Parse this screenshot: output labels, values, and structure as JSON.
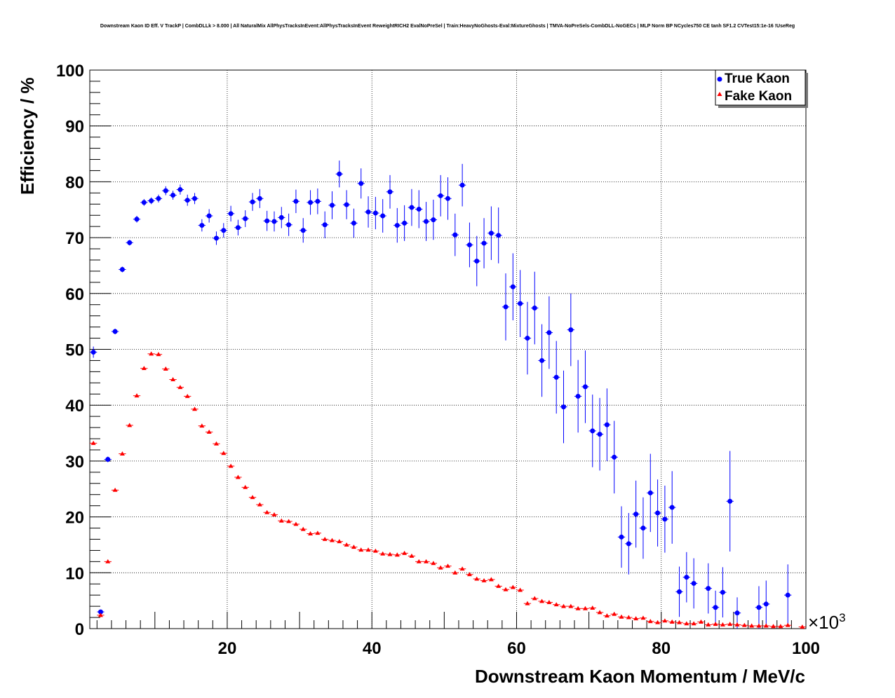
{
  "chart_data": {
    "type": "scatter",
    "title": "Downstream Kaon ID Eff. V TrackP | CombDLLk > 8.000 | All NaturalMix AllPhysTracksInEvent:AllPhysTracksInEvent ReweightRICH2 EvalNoPreSel | Train:HeavyNoGhosts-Eval:MixtureGhosts | TMVA-NoPreSels-CombDLL-NoGECs | MLP Norm BP NCycles750 CE tanh SF1.2 CVTest15:1e-16 !UseReg",
    "xlabel": "Downstream Kaon Momentum / MeV/c",
    "ylabel": "Efficiency / %",
    "x_multiplier": "×10",
    "x_multiplier_exp": "3",
    "xlim": [
      1,
      100
    ],
    "ylim": [
      0,
      100
    ],
    "x_ticks": [
      20,
      40,
      60,
      80,
      100
    ],
    "y_ticks": [
      0,
      10,
      20,
      30,
      40,
      50,
      60,
      70,
      80,
      90,
      100
    ],
    "grid": true,
    "legend_position": "top-right",
    "series": [
      {
        "name": "True Kaon",
        "color": "#0000ff",
        "marker": "circle",
        "x": [
          1.5,
          2.5,
          3.5,
          4.5,
          5.5,
          6.5,
          7.5,
          8.5,
          9.5,
          10.5,
          11.5,
          12.5,
          13.5,
          14.5,
          15.5,
          16.5,
          17.5,
          18.5,
          19.5,
          20.5,
          21.5,
          22.5,
          23.5,
          24.5,
          25.5,
          26.5,
          27.5,
          28.5,
          29.5,
          30.5,
          31.5,
          32.5,
          33.5,
          34.5,
          35.5,
          36.5,
          37.5,
          38.5,
          39.5,
          40.5,
          41.5,
          42.5,
          43.5,
          44.5,
          45.5,
          46.5,
          47.5,
          48.5,
          49.5,
          50.5,
          51.5,
          52.5,
          53.5,
          54.5,
          55.5,
          56.5,
          57.5,
          58.5,
          59.5,
          60.5,
          61.5,
          62.5,
          63.5,
          64.5,
          65.5,
          66.5,
          67.5,
          68.5,
          69.5,
          70.5,
          71.5,
          72.5,
          73.5,
          74.5,
          75.5,
          76.5,
          77.5,
          78.5,
          79.5,
          80.5,
          81.5,
          82.5,
          83.5,
          84.5,
          86.5,
          87.5,
          88.5,
          89.5,
          90.5,
          93.5,
          94.5,
          97.5
        ],
        "y": [
          49.5,
          3.0,
          30.3,
          53.2,
          64.3,
          69.1,
          73.3,
          76.3,
          76.6,
          77.0,
          78.4,
          77.6,
          78.6,
          76.7,
          77.0,
          72.2,
          73.9,
          69.9,
          71.3,
          74.3,
          71.8,
          73.4,
          76.4,
          77.0,
          73.0,
          72.9,
          73.6,
          72.3,
          76.5,
          71.3,
          76.3,
          76.5,
          72.3,
          75.8,
          81.4,
          75.9,
          72.6,
          79.7,
          74.6,
          74.4,
          73.9,
          78.2,
          72.2,
          72.6,
          75.4,
          75.1,
          72.9,
          73.2,
          77.5,
          77.0,
          70.5,
          79.4,
          68.7,
          65.8,
          69.0,
          70.8,
          70.4,
          57.6,
          61.2,
          58.2,
          52.0,
          57.4,
          48.0,
          53.0,
          45.0,
          39.7,
          53.5,
          41.6,
          43.3,
          35.4,
          34.8,
          36.5,
          30.7,
          16.4,
          15.2,
          20.5,
          18.0,
          24.3,
          20.7,
          19.6,
          21.7,
          6.6,
          9.2,
          8.1,
          7.2,
          3.8,
          6.5,
          22.8,
          2.8,
          3.8,
          4.4,
          6.0
        ],
        "err": [
          1.0,
          0.3,
          0.5,
          0.5,
          0.5,
          0.5,
          0.6,
          0.6,
          0.6,
          0.7,
          0.8,
          0.8,
          0.9,
          1.0,
          1.0,
          1.1,
          1.2,
          1.2,
          1.3,
          1.4,
          1.4,
          1.5,
          1.6,
          1.7,
          1.8,
          1.8,
          1.9,
          2.0,
          2.1,
          2.2,
          2.2,
          2.3,
          2.4,
          2.5,
          2.4,
          2.6,
          2.6,
          2.7,
          2.8,
          2.9,
          3.0,
          3.0,
          3.1,
          3.2,
          3.3,
          3.4,
          3.5,
          3.6,
          3.7,
          3.8,
          3.8,
          3.8,
          4.0,
          4.5,
          4.5,
          4.8,
          5.0,
          6.0,
          6.0,
          6.0,
          6.5,
          6.5,
          6.5,
          6.5,
          6.5,
          6.5,
          6.5,
          6.5,
          6.5,
          6.5,
          6.5,
          6.5,
          6.5,
          5.5,
          5.5,
          6.0,
          5.5,
          7.0,
          6.0,
          6.0,
          6.5,
          4.5,
          4.5,
          4.5,
          4.5,
          3.0,
          4.5,
          9.0,
          2.8,
          3.8,
          4.2,
          5.5
        ]
      },
      {
        "name": "Fake Kaon",
        "color": "#ff0000",
        "marker": "triangle",
        "x": [
          1.5,
          2.5,
          3.5,
          4.5,
          5.5,
          6.5,
          7.5,
          8.5,
          9.5,
          10.5,
          11.5,
          12.5,
          13.5,
          14.5,
          15.5,
          16.5,
          17.5,
          18.5,
          19.5,
          20.5,
          21.5,
          22.5,
          23.5,
          24.5,
          25.5,
          26.5,
          27.5,
          28.5,
          29.5,
          30.5,
          31.5,
          32.5,
          33.5,
          34.5,
          35.5,
          36.5,
          37.5,
          38.5,
          39.5,
          40.5,
          41.5,
          42.5,
          43.5,
          44.5,
          45.5,
          46.5,
          47.5,
          48.5,
          49.5,
          50.5,
          51.5,
          52.5,
          53.5,
          54.5,
          55.5,
          56.5,
          57.5,
          58.5,
          59.5,
          60.5,
          61.5,
          62.5,
          63.5,
          64.5,
          65.5,
          66.5,
          67.5,
          68.5,
          69.5,
          70.5,
          71.5,
          72.5,
          73.5,
          74.5,
          75.5,
          76.5,
          77.5,
          78.5,
          79.5,
          80.5,
          81.5,
          82.5,
          83.5,
          84.5,
          85.5,
          86.5,
          87.5,
          88.5,
          89.5,
          90.5,
          91.5,
          92.5,
          93.5,
          94.5,
          95.5,
          96.5,
          97.5,
          99.5
        ],
        "y": [
          33.2,
          2.4,
          12.0,
          24.8,
          31.3,
          36.4,
          41.7,
          46.6,
          49.2,
          49.1,
          46.5,
          44.6,
          43.2,
          41.6,
          39.3,
          36.3,
          35.2,
          33.1,
          31.4,
          29.1,
          27.1,
          25.3,
          23.5,
          22.2,
          20.8,
          20.4,
          19.3,
          19.2,
          18.7,
          17.8,
          17.0,
          17.1,
          16.0,
          15.8,
          15.6,
          15.0,
          14.6,
          14.1,
          14.1,
          13.9,
          13.4,
          13.3,
          13.2,
          13.5,
          13.0,
          12.0,
          12.0,
          11.7,
          10.9,
          11.2,
          10.0,
          10.7,
          9.7,
          8.9,
          8.6,
          8.8,
          7.6,
          7.0,
          7.4,
          6.9,
          4.5,
          5.4,
          4.9,
          4.7,
          4.3,
          4.0,
          4.0,
          3.6,
          3.6,
          3.7,
          2.9,
          2.3,
          2.6,
          2.1,
          2.0,
          1.8,
          1.9,
          1.3,
          1.1,
          1.4,
          1.2,
          1.1,
          0.9,
          0.9,
          1.2,
          0.7,
          0.8,
          0.7,
          0.8,
          0.7,
          0.6,
          0.5,
          0.5,
          0.5,
          0.4,
          0.4,
          0.6,
          0.3
        ],
        "err": [
          0.3,
          0.2,
          0.2,
          0.2,
          0.2,
          0.2,
          0.2,
          0.2,
          0.2,
          0.2,
          0.2,
          0.2,
          0.2,
          0.2,
          0.2,
          0.2,
          0.2,
          0.2,
          0.2,
          0.2,
          0.2,
          0.2,
          0.2,
          0.2,
          0.2,
          0.2,
          0.2,
          0.2,
          0.2,
          0.2,
          0.2,
          0.2,
          0.2,
          0.2,
          0.2,
          0.2,
          0.2,
          0.2,
          0.2,
          0.2,
          0.2,
          0.2,
          0.2,
          0.2,
          0.2,
          0.2,
          0.2,
          0.2,
          0.2,
          0.2,
          0.2,
          0.2,
          0.2,
          0.2,
          0.2,
          0.2,
          0.2,
          0.2,
          0.2,
          0.2,
          0.2,
          0.2,
          0.2,
          0.2,
          0.2,
          0.2,
          0.2,
          0.2,
          0.2,
          0.2,
          0.2,
          0.2,
          0.2,
          0.2,
          0.2,
          0.2,
          0.2,
          0.2,
          0.2,
          0.2,
          0.2,
          0.2,
          0.2,
          0.2,
          0.2,
          0.2,
          0.2,
          0.2,
          0.2,
          0.2,
          0.2,
          0.2,
          0.2,
          0.2,
          0.2,
          0.2,
          0.2,
          0.2
        ]
      }
    ]
  }
}
